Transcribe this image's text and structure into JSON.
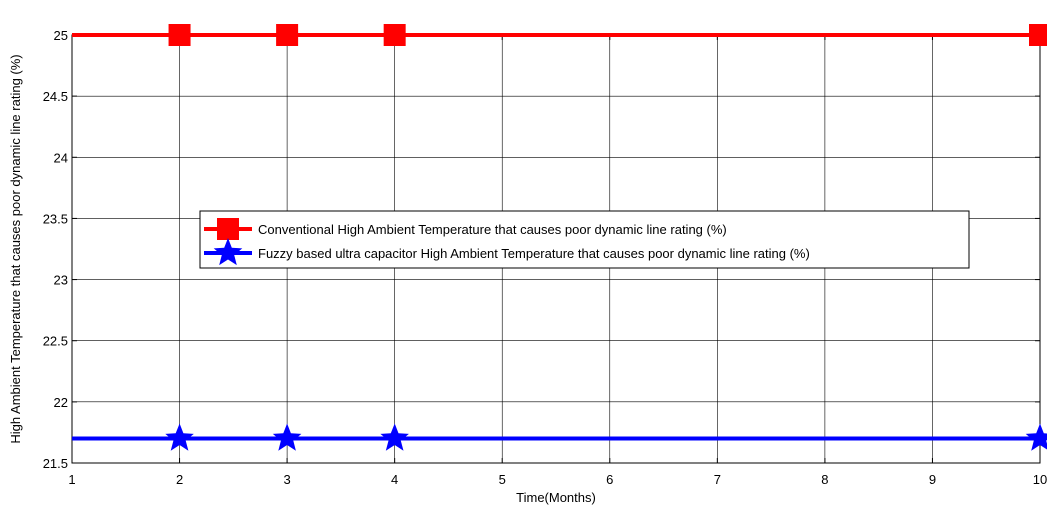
{
  "chart_data": {
    "type": "line",
    "title": "",
    "xlabel": "Time(Months)",
    "ylabel": "High Ambient Temperature that causes poor dynamic line rating (%)",
    "xlim": [
      1,
      10
    ],
    "ylim": [
      21.5,
      25
    ],
    "x_ticks": [
      "1",
      "2",
      "3",
      "4",
      "5",
      "6",
      "7",
      "8",
      "9",
      "10"
    ],
    "y_ticks": [
      "21.5",
      "22",
      "22.5",
      "23",
      "23.5",
      "24",
      "24.5",
      "25"
    ],
    "grid": true,
    "legend_position": "center-left",
    "series": [
      {
        "name": "Conventional High Ambient Temperature that causes poor dynamic line rating (%)",
        "color": "#ff0000",
        "marker": "square",
        "x": [
          2,
          3,
          4,
          10
        ],
        "y": [
          25,
          25,
          25,
          25
        ]
      },
      {
        "name": "Fuzzy based ultra capacitor High Ambient Temperature that causes poor dynamic line rating (%)",
        "color": "#0000ff",
        "marker": "star",
        "x": [
          2,
          3,
          4,
          10
        ],
        "y": [
          21.7,
          21.7,
          21.7,
          21.7
        ]
      }
    ]
  }
}
